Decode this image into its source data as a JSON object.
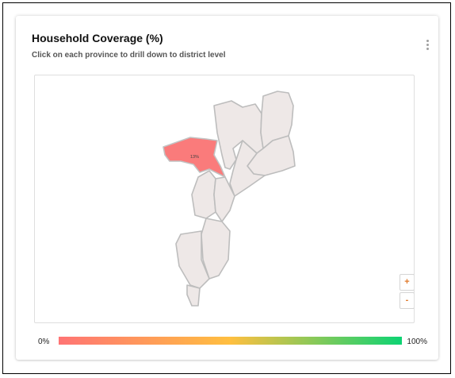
{
  "card": {
    "title": "Household Coverage (%)",
    "subtitle": "Click on each province to drill down to district level",
    "menu_icon": "kebab-vertical-icon"
  },
  "map": {
    "country": "Mozambique",
    "highlighted_region": {
      "label": "13%",
      "value": 13,
      "fill": "#fa7b7b"
    },
    "default_fill": "#eee8e7",
    "border_color": "#bdbdbd",
    "zoom_in_label": "+",
    "zoom_out_label": "-"
  },
  "legend": {
    "min_label": "0%",
    "max_label": "100%",
    "gradient": [
      "#ff7474",
      "#ffbf40",
      "#0dd373"
    ]
  }
}
